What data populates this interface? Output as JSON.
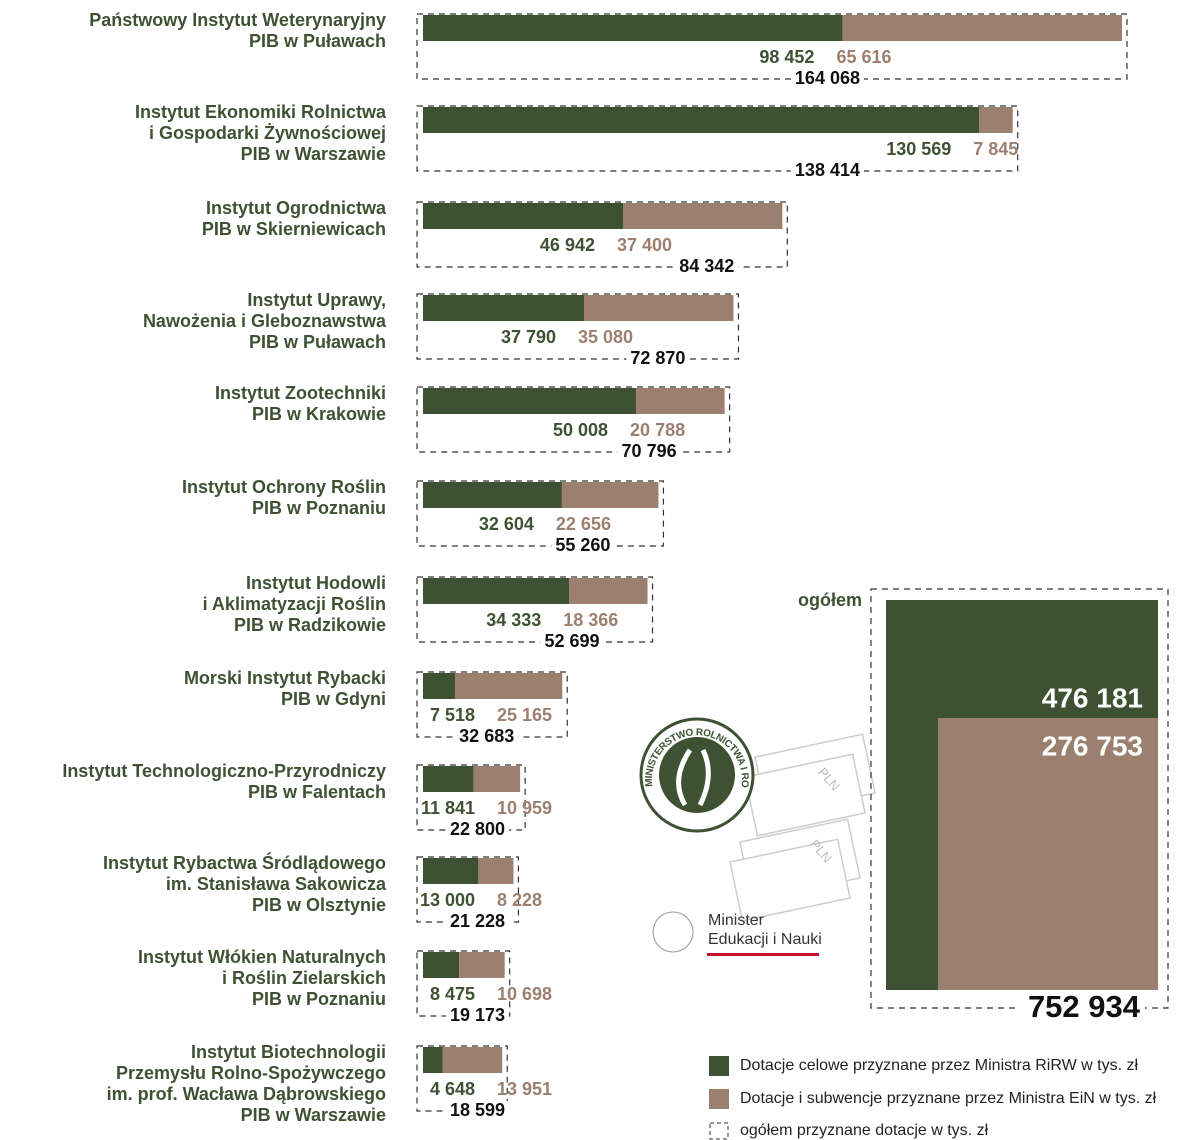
{
  "chart_data": {
    "type": "stacked-bar",
    "categories": [
      [
        "Państwowy Instytut Weterynaryjny",
        "PIB w Puławach"
      ],
      [
        "Instytut Ekonomiki Rolnictwa",
        "i Gospodarki Żywnościowej",
        "PIB w Warszawie"
      ],
      [
        "Instytut Ogrodnictwa",
        "PIB w Skierniewicach"
      ],
      [
        "Instytut Uprawy,",
        "Nawożenia i Gleboznawstwa",
        "PIB w Puławach"
      ],
      [
        "Instytut Zootechniki",
        "PIB w Krakowie"
      ],
      [
        "Instytut Ochrony Roślin",
        "PIB w Poznaniu"
      ],
      [
        "Instytut Hodowli",
        "i Aklimatyzacji Roślin",
        "PIB w Radzikowie"
      ],
      [
        "Morski Instytut Rybacki",
        "PIB w Gdyni"
      ],
      [
        "Instytut Technologiczno-Przyrodniczy",
        "PIB w Falentach"
      ],
      [
        "Instytut Rybactwa Śródlądowego",
        "im. Stanisława Sakowicza",
        "PIB w Olsztynie"
      ],
      [
        "Instytut Włókien Naturalnych",
        "i Roślin Zielarskich",
        "PIB w Poznaniu"
      ],
      [
        "Instytut Biotechnologii",
        "Przemysłu Rolno-Spożywczego",
        "im. prof. Wacława Dąbrowskiego",
        "PIB w Warszawie"
      ]
    ],
    "series": [
      {
        "name": "Dotacje celowe przyznane przez Ministra RiRW w tys. zł",
        "color": "#3e5133",
        "values": [
          98452,
          130569,
          46942,
          37790,
          50008,
          32604,
          34333,
          7518,
          11841,
          13000,
          8475,
          4648
        ],
        "value_labels": [
          "98 452",
          "130 569",
          "46 942",
          "37 790",
          "50 008",
          "32 604",
          "34 333",
          "7 518",
          "11 841",
          "13 000",
          "8 475",
          "4 648"
        ]
      },
      {
        "name": "Dotacje i subwencje przyznane przez Ministra EiN w tys. zł",
        "color": "#9b8070",
        "values": [
          65616,
          7845,
          37400,
          35080,
          20788,
          22656,
          18366,
          25165,
          10959,
          8228,
          10698,
          13951
        ],
        "value_labels": [
          "65 616",
          "7 845",
          "37 400",
          "35 080",
          "20 788",
          "22 656",
          "18 366",
          "25 165",
          "10 959",
          "8 228",
          "10 698",
          "13 951"
        ]
      }
    ],
    "totals": {
      "name": "ogółem przyznane dotacje w tys. zł",
      "values": [
        164068,
        138414,
        84342,
        72870,
        70796,
        55260,
        52699,
        32683,
        22800,
        21228,
        19173,
        18599
      ],
      "value_labels": [
        "164 068",
        "138 414",
        "84 342",
        "72 870",
        "70 796",
        "55 260",
        "52 699",
        "32 683",
        "22 800",
        "21 228",
        "19 173",
        "18 599"
      ]
    },
    "summary": {
      "title": "ogółem",
      "values": [
        476181,
        276753
      ],
      "value_labels": [
        "476 181",
        "276 753"
      ],
      "total": 752934,
      "total_label": "752 934"
    },
    "logos": {
      "ministry": "MINISTERSTWO ROLNICTWA I ROZWOJU WSI",
      "minister": [
        "Minister",
        "Edukacji i Nauki"
      ],
      "currency": "PLN"
    }
  }
}
